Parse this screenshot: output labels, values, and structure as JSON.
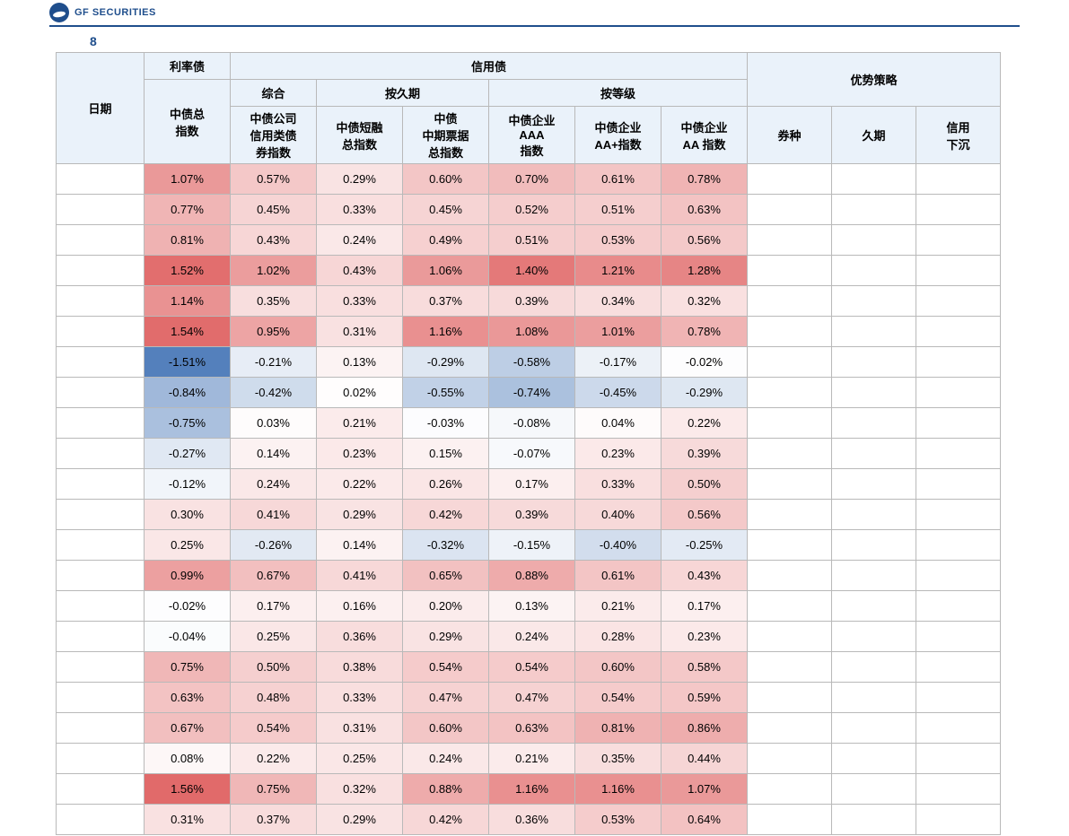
{
  "brand": "GF SECURITIES",
  "caption_number": "8",
  "header": {
    "date": "日期",
    "rate_bond": "利率债",
    "credit_bond": "信用债",
    "comprehensive": "综合",
    "by_duration": "按久期",
    "by_rating": "按等级",
    "advantage_strategy": "优势策略",
    "cols": [
      "中债总\n指数",
      "中债公司\n信用类债\n券指数",
      "中债短融\n总指数",
      "中债\n中期票据\n总指数",
      "中债企业\nAAA\n指数",
      "中债企业\nAA+指数",
      "中债企业\nAA 指数",
      "券种",
      "久期",
      "信用\n下沉"
    ]
  },
  "heat": {
    "min_color": "#4a78b8",
    "mid_color": "#ffffff",
    "max_color": "#e06666",
    "min_val": -1.6,
    "max_val": 1.6
  },
  "rows": [
    {
      "d": "",
      "v": [
        "1.07%",
        "0.57%",
        "0.29%",
        "0.60%",
        "0.70%",
        "0.61%",
        "0.78%"
      ],
      "vn": [
        1.07,
        0.57,
        0.29,
        0.6,
        0.7,
        0.61,
        0.78
      ],
      "s": [
        "",
        "",
        ""
      ]
    },
    {
      "d": "",
      "v": [
        "0.77%",
        "0.45%",
        "0.33%",
        "0.45%",
        "0.52%",
        "0.51%",
        "0.63%"
      ],
      "vn": [
        0.77,
        0.45,
        0.33,
        0.45,
        0.52,
        0.51,
        0.63
      ],
      "s": [
        "",
        "",
        ""
      ]
    },
    {
      "d": "",
      "v": [
        "0.81%",
        "0.43%",
        "0.24%",
        "0.49%",
        "0.51%",
        "0.53%",
        "0.56%"
      ],
      "vn": [
        0.81,
        0.43,
        0.24,
        0.49,
        0.51,
        0.53,
        0.56
      ],
      "s": [
        "",
        "",
        ""
      ]
    },
    {
      "d": "",
      "v": [
        "1.52%",
        "1.02%",
        "0.43%",
        "1.06%",
        "1.40%",
        "1.21%",
        "1.28%"
      ],
      "vn": [
        1.52,
        1.02,
        0.43,
        1.06,
        1.4,
        1.21,
        1.28
      ],
      "s": [
        "",
        "",
        ""
      ]
    },
    {
      "d": "",
      "v": [
        "1.14%",
        "0.35%",
        "0.33%",
        "0.37%",
        "0.39%",
        "0.34%",
        "0.32%"
      ],
      "vn": [
        1.14,
        0.35,
        0.33,
        0.37,
        0.39,
        0.34,
        0.32
      ],
      "s": [
        "",
        "",
        ""
      ]
    },
    {
      "d": "",
      "v": [
        "1.54%",
        "0.95%",
        "0.31%",
        "1.16%",
        "1.08%",
        "1.01%",
        "0.78%"
      ],
      "vn": [
        1.54,
        0.95,
        0.31,
        1.16,
        1.08,
        1.01,
        0.78
      ],
      "s": [
        "",
        "",
        ""
      ]
    },
    {
      "d": "",
      "v": [
        "-1.51%",
        "-0.21%",
        "0.13%",
        "-0.29%",
        "-0.58%",
        "-0.17%",
        "-0.02%"
      ],
      "vn": [
        -1.51,
        -0.21,
        0.13,
        -0.29,
        -0.58,
        -0.17,
        -0.02
      ],
      "s": [
        "",
        "",
        ""
      ]
    },
    {
      "d": "",
      "v": [
        "-0.84%",
        "-0.42%",
        "0.02%",
        "-0.55%",
        "-0.74%",
        "-0.45%",
        "-0.29%"
      ],
      "vn": [
        -0.84,
        -0.42,
        0.02,
        -0.55,
        -0.74,
        -0.45,
        -0.29
      ],
      "s": [
        "",
        "",
        ""
      ]
    },
    {
      "d": "",
      "v": [
        "-0.75%",
        "0.03%",
        "0.21%",
        "-0.03%",
        "-0.08%",
        "0.04%",
        "0.22%"
      ],
      "vn": [
        -0.75,
        0.03,
        0.21,
        -0.03,
        -0.08,
        0.04,
        0.22
      ],
      "s": [
        "",
        "",
        ""
      ]
    },
    {
      "d": "",
      "v": [
        "-0.27%",
        "0.14%",
        "0.23%",
        "0.15%",
        "-0.07%",
        "0.23%",
        "0.39%"
      ],
      "vn": [
        -0.27,
        0.14,
        0.23,
        0.15,
        -0.07,
        0.23,
        0.39
      ],
      "s": [
        "",
        "",
        ""
      ]
    },
    {
      "d": "",
      "v": [
        "-0.12%",
        "0.24%",
        "0.22%",
        "0.26%",
        "0.17%",
        "0.33%",
        "0.50%"
      ],
      "vn": [
        -0.12,
        0.24,
        0.22,
        0.26,
        0.17,
        0.33,
        0.5
      ],
      "s": [
        "",
        "",
        ""
      ]
    },
    {
      "d": "",
      "v": [
        "0.30%",
        "0.41%",
        "0.29%",
        "0.42%",
        "0.39%",
        "0.40%",
        "0.56%"
      ],
      "vn": [
        0.3,
        0.41,
        0.29,
        0.42,
        0.39,
        0.4,
        0.56
      ],
      "s": [
        "",
        "",
        ""
      ]
    },
    {
      "d": "",
      "v": [
        "0.25%",
        "-0.26%",
        "0.14%",
        "-0.32%",
        "-0.15%",
        "-0.40%",
        "-0.25%"
      ],
      "vn": [
        0.25,
        -0.26,
        0.14,
        -0.32,
        -0.15,
        -0.4,
        -0.25
      ],
      "s": [
        "",
        "",
        ""
      ]
    },
    {
      "d": "",
      "v": [
        "0.99%",
        "0.67%",
        "0.41%",
        "0.65%",
        "0.88%",
        "0.61%",
        "0.43%"
      ],
      "vn": [
        0.99,
        0.67,
        0.41,
        0.65,
        0.88,
        0.61,
        0.43
      ],
      "s": [
        "",
        "",
        ""
      ]
    },
    {
      "d": "",
      "v": [
        "-0.02%",
        "0.17%",
        "0.16%",
        "0.20%",
        "0.13%",
        "0.21%",
        "0.17%"
      ],
      "vn": [
        -0.02,
        0.17,
        0.16,
        0.2,
        0.13,
        0.21,
        0.17
      ],
      "s": [
        "",
        "",
        ""
      ]
    },
    {
      "d": "",
      "v": [
        "-0.04%",
        "0.25%",
        "0.36%",
        "0.29%",
        "0.24%",
        "0.28%",
        "0.23%"
      ],
      "vn": [
        -0.04,
        0.25,
        0.36,
        0.29,
        0.24,
        0.28,
        0.23
      ],
      "s": [
        "",
        "",
        ""
      ]
    },
    {
      "d": "",
      "v": [
        "0.75%",
        "0.50%",
        "0.38%",
        "0.54%",
        "0.54%",
        "0.60%",
        "0.58%"
      ],
      "vn": [
        0.75,
        0.5,
        0.38,
        0.54,
        0.54,
        0.6,
        0.58
      ],
      "s": [
        "",
        "",
        ""
      ]
    },
    {
      "d": "",
      "v": [
        "0.63%",
        "0.48%",
        "0.33%",
        "0.47%",
        "0.47%",
        "0.54%",
        "0.59%"
      ],
      "vn": [
        0.63,
        0.48,
        0.33,
        0.47,
        0.47,
        0.54,
        0.59
      ],
      "s": [
        "",
        "",
        ""
      ]
    },
    {
      "d": "",
      "v": [
        "0.67%",
        "0.54%",
        "0.31%",
        "0.60%",
        "0.63%",
        "0.81%",
        "0.86%"
      ],
      "vn": [
        0.67,
        0.54,
        0.31,
        0.6,
        0.63,
        0.81,
        0.86
      ],
      "s": [
        "",
        "",
        ""
      ]
    },
    {
      "d": "",
      "v": [
        "0.08%",
        "0.22%",
        "0.25%",
        "0.24%",
        "0.21%",
        "0.35%",
        "0.44%"
      ],
      "vn": [
        0.08,
        0.22,
        0.25,
        0.24,
        0.21,
        0.35,
        0.44
      ],
      "s": [
        "",
        "",
        ""
      ]
    },
    {
      "d": "",
      "v": [
        "1.56%",
        "0.75%",
        "0.32%",
        "0.88%",
        "1.16%",
        "1.16%",
        "1.07%"
      ],
      "vn": [
        1.56,
        0.75,
        0.32,
        0.88,
        1.16,
        1.16,
        1.07
      ],
      "s": [
        "",
        "",
        ""
      ]
    },
    {
      "d": "",
      "v": [
        "0.31%",
        "0.37%",
        "0.29%",
        "0.42%",
        "0.36%",
        "0.53%",
        "0.64%"
      ],
      "vn": [
        0.31,
        0.37,
        0.29,
        0.42,
        0.36,
        0.53,
        0.64
      ],
      "s": [
        "",
        "",
        ""
      ]
    }
  ]
}
